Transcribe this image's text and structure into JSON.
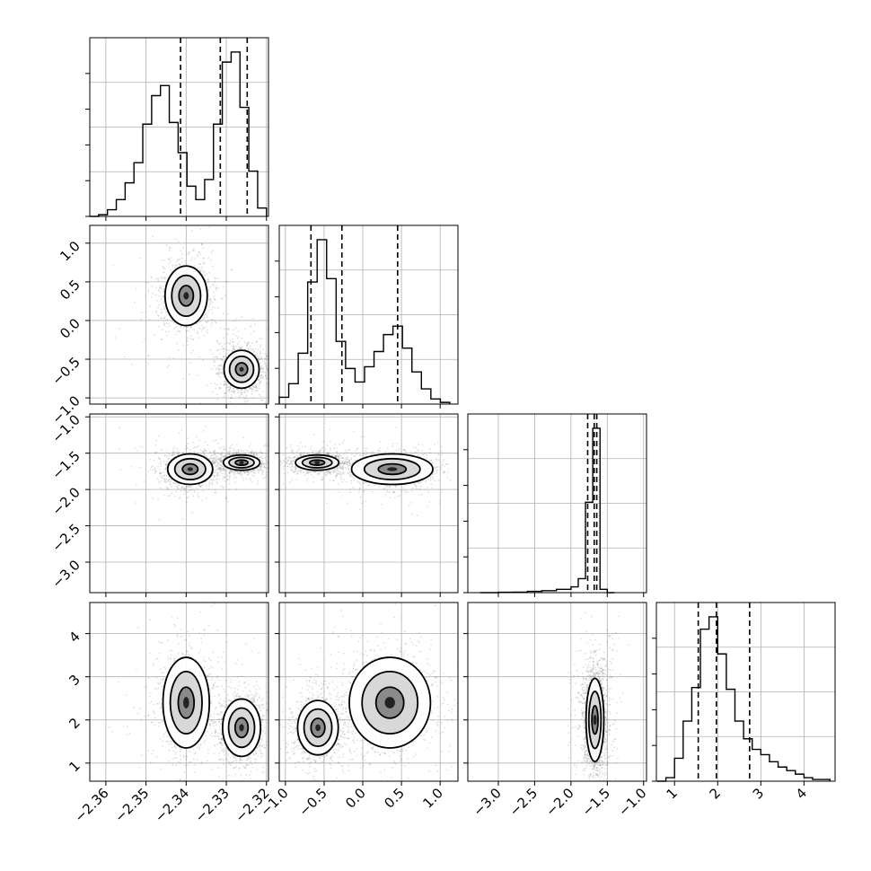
{
  "chart_data": {
    "type": "corner",
    "parameters": [
      {
        "ticks": [
          -2.36,
          -2.35,
          -2.34,
          -2.33,
          -2.32
        ],
        "tick_labels": [
          "−2.36",
          "−2.35",
          "−2.34",
          "−2.33",
          "−2.32"
        ],
        "range": [
          -2.364,
          -2.3195
        ]
      },
      {
        "ticks": [
          -1.0,
          -0.5,
          0.0,
          0.5,
          1.0
        ],
        "tick_labels": [
          "−1.0",
          "−0.5",
          "0.0",
          "0.5",
          "1.0"
        ],
        "range": [
          -1.08,
          1.23
        ]
      },
      {
        "ticks": [
          -3.0,
          -2.5,
          -2.0,
          -1.5,
          -1.0
        ],
        "tick_labels": [
          "−3.0",
          "−2.5",
          "−2.0",
          "−1.5",
          "−1.0"
        ],
        "range": [
          -3.42,
          -0.96
        ]
      },
      {
        "ticks": [
          1,
          2,
          3,
          4
        ],
        "tick_labels": [
          "1",
          "2",
          "3",
          "4"
        ],
        "range": [
          0.58,
          4.72
        ]
      }
    ],
    "histograms": [
      {
        "parameter": 0,
        "bin_edges": [
          -2.364,
          -2.3618,
          -2.3596,
          -2.3574,
          -2.3552,
          -2.353,
          -2.3508,
          -2.3486,
          -2.3464,
          -2.3442,
          -2.342,
          -2.3398,
          -2.3376,
          -2.3354,
          -2.3332,
          -2.331,
          -2.3288,
          -2.3266,
          -2.3244,
          -2.3222,
          -2.32
        ],
        "counts": [
          0.0,
          0.01,
          0.04,
          0.1,
          0.2,
          0.32,
          0.55,
          0.72,
          0.78,
          0.56,
          0.38,
          0.18,
          0.1,
          0.22,
          0.55,
          0.92,
          0.98,
          0.65,
          0.27,
          0.05
        ],
        "quantiles": [
          -2.3414,
          -2.3315,
          -2.3248
        ]
      },
      {
        "parameter": 1,
        "bin_edges": [
          -1.08,
          -0.9575,
          -0.835,
          -0.7125,
          -0.59,
          -0.4675,
          -0.345,
          -0.2225,
          -0.1,
          0.0225,
          0.145,
          0.2675,
          0.39,
          0.5125,
          0.635,
          0.7575,
          0.88,
          1.0025,
          1.125
        ],
        "counts": [
          0.04,
          0.12,
          0.3,
          0.72,
          0.97,
          0.74,
          0.37,
          0.21,
          0.13,
          0.22,
          0.31,
          0.41,
          0.46,
          0.33,
          0.19,
          0.09,
          0.03,
          0.01
        ],
        "quantiles": [
          -0.67,
          -0.27,
          0.45
        ]
      },
      {
        "parameter": 2,
        "bin_edges": [
          -3.25,
          -3.0,
          -2.8,
          -2.6,
          -2.4,
          -2.2,
          -2.0,
          -1.9,
          -1.8,
          -1.7,
          -1.6,
          -1.5,
          -1.4
        ],
        "counts": [
          0.0,
          0.002,
          0.003,
          0.008,
          0.012,
          0.02,
          0.035,
          0.085,
          0.55,
          1.0,
          0.02,
          0.0
        ],
        "quantiles": [
          -1.77,
          -1.68,
          -1.645
        ]
      },
      {
        "parameter": 3,
        "bin_edges": [
          0.6,
          0.8,
          1.0,
          1.2,
          1.4,
          1.6,
          1.8,
          2.0,
          2.2,
          2.4,
          2.6,
          2.8,
          3.0,
          3.2,
          3.4,
          3.6,
          3.8,
          4.0,
          4.2,
          4.4,
          4.6
        ],
        "counts": [
          0.0,
          0.02,
          0.13,
          0.34,
          0.53,
          0.86,
          0.93,
          0.72,
          0.52,
          0.34,
          0.24,
          0.18,
          0.15,
          0.11,
          0.08,
          0.06,
          0.04,
          0.02,
          0.01,
          0.01
        ],
        "quantiles": [
          1.55,
          1.97,
          2.74
        ]
      }
    ],
    "joint_modes": [
      {
        "x": 0,
        "y": 1,
        "clusters": [
          {
            "center": [
              -2.34,
              0.32
            ],
            "spread": [
              0.003,
              0.22
            ],
            "weight": 0.45
          },
          {
            "center": [
              -2.3262,
              -0.63
            ],
            "spread": [
              0.0025,
              0.14
            ],
            "weight": 0.55
          }
        ]
      },
      {
        "x": 0,
        "y": 2,
        "clusters": [
          {
            "center": [
              -2.339,
              -1.72
            ],
            "spread": [
              0.0032,
              0.12
            ],
            "weight": 0.45
          },
          {
            "center": [
              -2.3262,
              -1.63
            ],
            "spread": [
              0.0026,
              0.06
            ],
            "weight": 0.55
          }
        ]
      },
      {
        "x": 0,
        "y": 3,
        "clusters": [
          {
            "center": [
              -2.34,
              2.4
            ],
            "spread": [
              0.0033,
              0.6
            ],
            "weight": 0.45
          },
          {
            "center": [
              -2.3262,
              1.82
            ],
            "spread": [
              0.0027,
              0.38
            ],
            "weight": 0.55
          }
        ]
      },
      {
        "x": 1,
        "y": 2,
        "clusters": [
          {
            "center": [
              -0.59,
              -1.63
            ],
            "spread": [
              0.16,
              0.06
            ],
            "weight": 0.55
          },
          {
            "center": [
              0.38,
              -1.72
            ],
            "spread": [
              0.3,
              0.12
            ],
            "weight": 0.45
          }
        ]
      },
      {
        "x": 1,
        "y": 3,
        "clusters": [
          {
            "center": [
              -0.58,
              1.82
            ],
            "spread": [
              0.15,
              0.36
            ],
            "weight": 0.55
          },
          {
            "center": [
              0.35,
              2.4
            ],
            "spread": [
              0.3,
              0.6
            ],
            "weight": 0.45
          }
        ]
      },
      {
        "x": 2,
        "y": 3,
        "clusters": [
          {
            "center": [
              -1.67,
              2.0
            ],
            "spread": [
              0.07,
              0.55
            ],
            "weight": 1.0
          }
        ]
      }
    ],
    "style": {
      "line_color": "#000000",
      "point_color": "#555555",
      "grid_color": "#b0b0b0",
      "background": "#ffffff"
    },
    "grid": true,
    "quantile_line_style": "dashed",
    "contour_levels": 3
  }
}
